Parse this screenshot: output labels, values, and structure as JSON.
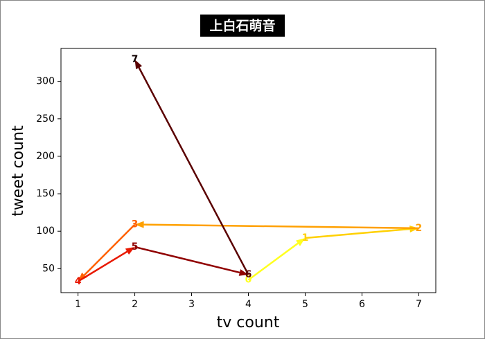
{
  "chart_data": {
    "type": "arrow-path",
    "title": "上白石萌音",
    "x_label": "tv count",
    "y_label": "tweet count",
    "x": [
      4,
      5,
      7,
      2,
      1,
      2,
      4,
      2
    ],
    "values": [
      35,
      91,
      104,
      109,
      33,
      79,
      42,
      329
    ],
    "labels": [
      "0",
      "1",
      "2",
      "3",
      "4",
      "5",
      "6",
      "7"
    ],
    "colors": [
      "#ffff20",
      "#ffd000",
      "#ffa000",
      "#ff6000",
      "#e81800",
      "#900000",
      "#5a0000",
      "#100000"
    ],
    "xlim": [
      0.7,
      7.3
    ],
    "ylim": [
      18,
      344
    ],
    "xticks": [
      1,
      2,
      3,
      4,
      5,
      6,
      7
    ],
    "yticks": [
      50,
      100,
      150,
      200,
      250,
      300
    ]
  }
}
